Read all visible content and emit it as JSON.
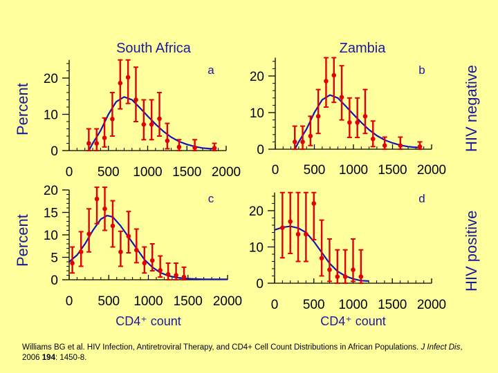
{
  "colors": {
    "background": "#FFFF9E",
    "points": "#E00000",
    "curve": "#1414B4",
    "text": "#1a1a99"
  },
  "side_labels": {
    "percent_top": "Percent",
    "percent_bottom": "Percent",
    "hiv_negative": "HIV negative",
    "hiv_positive": "HIV positive"
  },
  "citation": {
    "part1": "Williams BG et al. HIV Infection, Antiretroviral Therapy, and CD4+ Cell Count Distributions in African Populations. ",
    "journal": "J Infect Dis",
    "part2": ", 2006 ",
    "volume": "194",
    "part3": ": 1450-8."
  },
  "chart_data": [
    {
      "type": "scatter",
      "panel": "a",
      "title": "South Africa",
      "xlabel": "",
      "ylabel": "Percent",
      "xlim": [
        0,
        2000
      ],
      "ylim": [
        0,
        25
      ],
      "xticks": [
        "0",
        "500",
        "1000",
        "1500",
        "2000"
      ],
      "yticks": [
        "0",
        "10",
        "20"
      ],
      "points": [
        [
          250,
          2,
          0,
          6
        ],
        [
          350,
          2,
          0,
          6
        ],
        [
          450,
          3.5,
          1,
          9
        ],
        [
          550,
          8.7,
          4,
          16
        ],
        [
          650,
          18.6,
          11.5,
          25
        ],
        [
          750,
          20.2,
          13,
          25
        ],
        [
          850,
          14,
          8,
          23
        ],
        [
          950,
          7.2,
          3,
          14
        ],
        [
          1050,
          7.2,
          3,
          14
        ],
        [
          1150,
          8.8,
          4,
          16
        ],
        [
          1250,
          2.7,
          0.5,
          7.5
        ],
        [
          1400,
          1,
          0,
          3
        ],
        [
          1600,
          0.8,
          0,
          3
        ],
        [
          1850,
          0.7,
          0,
          2
        ]
      ],
      "curve": [
        [
          250,
          0
        ],
        [
          300,
          2
        ],
        [
          400,
          5.5
        ],
        [
          500,
          10
        ],
        [
          600,
          13.5
        ],
        [
          700,
          14.8
        ],
        [
          800,
          14
        ],
        [
          900,
          11.8
        ],
        [
          1000,
          9.5
        ],
        [
          1100,
          7.3
        ],
        [
          1200,
          5.3
        ],
        [
          1300,
          3.7
        ],
        [
          1400,
          2.5
        ],
        [
          1500,
          1.7
        ],
        [
          1600,
          1.1
        ],
        [
          1700,
          0.7
        ],
        [
          1800,
          0.5
        ],
        [
          1850,
          0.5
        ]
      ]
    },
    {
      "type": "scatter",
      "panel": "b",
      "title": "Zambia",
      "xlabel": "",
      "ylabel": "",
      "xlim": [
        0,
        2000
      ],
      "ylim": [
        0,
        25
      ],
      "xticks": [
        "0",
        "500",
        "1000",
        "1500",
        "2000"
      ],
      "yticks": [
        "0",
        "10",
        "20"
      ],
      "points": [
        [
          250,
          2,
          0,
          6.3
        ],
        [
          350,
          2,
          0,
          6.3
        ],
        [
          450,
          3.6,
          1,
          9
        ],
        [
          550,
          9,
          4.3,
          16.3
        ],
        [
          650,
          18.6,
          11.5,
          25
        ],
        [
          750,
          20.2,
          12.8,
          25
        ],
        [
          850,
          14.2,
          8,
          22.8
        ],
        [
          950,
          7.3,
          3.2,
          14
        ],
        [
          1050,
          7.3,
          3.2,
          14
        ],
        [
          1150,
          9,
          4.3,
          16.3
        ],
        [
          1250,
          2.8,
          0.7,
          7.7
        ],
        [
          1400,
          1,
          0,
          3.3
        ],
        [
          1600,
          1,
          0,
          3.3
        ],
        [
          1850,
          0.7,
          0,
          2
        ]
      ],
      "curve": [
        [
          250,
          0
        ],
        [
          300,
          2
        ],
        [
          400,
          5.5
        ],
        [
          500,
          10
        ],
        [
          600,
          13.5
        ],
        [
          700,
          14.8
        ],
        [
          800,
          14
        ],
        [
          900,
          11.8
        ],
        [
          1000,
          9.5
        ],
        [
          1100,
          7.3
        ],
        [
          1200,
          5.3
        ],
        [
          1300,
          3.7
        ],
        [
          1400,
          2.5
        ],
        [
          1500,
          1.7
        ],
        [
          1600,
          1.1
        ],
        [
          1700,
          0.7
        ],
        [
          1800,
          0.5
        ],
        [
          1850,
          0.5
        ]
      ]
    },
    {
      "type": "scatter",
      "panel": "c",
      "title": "",
      "xlabel": "CD4⁺ count",
      "ylabel": "Percent",
      "xlim": [
        0,
        2000
      ],
      "ylim": [
        0,
        20
      ],
      "xticks": [
        "0",
        "500",
        "1000",
        "1500",
        "2000"
      ],
      "yticks": [
        "0",
        "5",
        "10",
        "15",
        "20"
      ],
      "points": [
        [
          40,
          3.7,
          1.5,
          7.3
        ],
        [
          150,
          6.2,
          3,
          10.7
        ],
        [
          250,
          10.2,
          6.2,
          15.8
        ],
        [
          350,
          18,
          12.5,
          21
        ],
        [
          450,
          15.8,
          11,
          21
        ],
        [
          550,
          12,
          7.3,
          17.6
        ],
        [
          650,
          6.2,
          3,
          10.8
        ],
        [
          750,
          9.7,
          6,
          15.2
        ],
        [
          850,
          6.6,
          3.8,
          11.3
        ],
        [
          950,
          3.7,
          1.5,
          7.3
        ],
        [
          1050,
          4.3,
          2,
          8
        ],
        [
          1150,
          2.1,
          0.6,
          5.3
        ],
        [
          1250,
          1.2,
          0,
          3.7
        ],
        [
          1350,
          1,
          0,
          3.7
        ],
        [
          1450,
          0.6,
          0,
          2.8
        ]
      ],
      "curve": [
        [
          0,
          4
        ],
        [
          100,
          5.5
        ],
        [
          200,
          8
        ],
        [
          300,
          11
        ],
        [
          400,
          13.5
        ],
        [
          480,
          14.3
        ],
        [
          550,
          14
        ],
        [
          650,
          12
        ],
        [
          750,
          9.5
        ],
        [
          850,
          7
        ],
        [
          950,
          4.5
        ],
        [
          1050,
          2.8
        ],
        [
          1150,
          1.6
        ],
        [
          1250,
          0.9
        ],
        [
          1350,
          0.5
        ],
        [
          1450,
          0.3
        ],
        [
          1550,
          0.2
        ],
        [
          1700,
          0.1
        ],
        [
          2000,
          0.1
        ]
      ]
    },
    {
      "type": "scatter",
      "panel": "d",
      "title": "",
      "xlabel": "CD4⁺ count",
      "ylabel": "",
      "xlim": [
        0,
        2000
      ],
      "ylim": [
        0,
        25
      ],
      "xticks": [
        "0",
        "500",
        "1000",
        "1500",
        "2000"
      ],
      "yticks": [
        "0",
        "10",
        "20"
      ],
      "points": [
        [
          100,
          15.3,
          7,
          25
        ],
        [
          200,
          17,
          8.2,
          25
        ],
        [
          300,
          13.5,
          6,
          25
        ],
        [
          400,
          13.5,
          6,
          25
        ],
        [
          500,
          22,
          12,
          25
        ],
        [
          600,
          6.9,
          2,
          17.4
        ],
        [
          700,
          3.7,
          0.5,
          12.2
        ],
        [
          800,
          1.8,
          0,
          9.2
        ],
        [
          900,
          1.8,
          0,
          9.2
        ],
        [
          1000,
          3.7,
          0.5,
          12.2
        ],
        [
          1100,
          1.8,
          0,
          9.2
        ]
      ],
      "curve": [
        [
          0,
          14.7
        ],
        [
          100,
          15.4
        ],
        [
          200,
          15.7
        ],
        [
          300,
          15.2
        ],
        [
          400,
          14
        ],
        [
          500,
          11.5
        ],
        [
          600,
          8.5
        ],
        [
          700,
          5.5
        ],
        [
          800,
          3.3
        ],
        [
          900,
          2
        ],
        [
          1000,
          1.2
        ],
        [
          1100,
          0.7
        ],
        [
          1200,
          0.6
        ]
      ]
    }
  ]
}
